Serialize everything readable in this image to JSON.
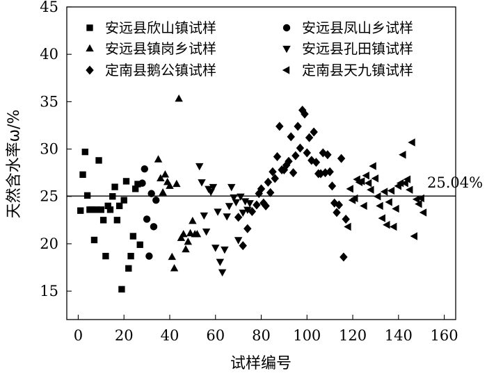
{
  "chart_data": {
    "type": "scatter",
    "xlabel": "试样编号",
    "ylabel": "天然含水率ω/%",
    "xlim": [
      -5,
      165
    ],
    "ylim": [
      12,
      45
    ],
    "xticks": [
      0,
      20,
      40,
      60,
      80,
      100,
      120,
      140,
      160
    ],
    "yticks": [
      15,
      20,
      25,
      30,
      35,
      40,
      45
    ],
    "legend_position": "top",
    "reference_line": {
      "y": 25.04,
      "label": "25.04%"
    },
    "series": [
      {
        "name": "安远县欣山镇试样",
        "marker": "square",
        "x": [
          1,
          2,
          3,
          4,
          5,
          6,
          7,
          8,
          9,
          10,
          11,
          12,
          13,
          14,
          15,
          16,
          17,
          18,
          19,
          20,
          21,
          22,
          23,
          24,
          25,
          26,
          27
        ],
        "y": [
          23.5,
          27.3,
          29.7,
          25.1,
          23.6,
          23.6,
          20.4,
          23.6,
          28.8,
          23.6,
          22.5,
          18.7,
          24.0,
          23.6,
          25.0,
          26.0,
          22.5,
          24.0,
          15.2,
          24.6,
          26.6,
          17.4,
          18.7,
          20.8,
          25.8,
          26.3,
          19.9
        ]
      },
      {
        "name": "安远县凤山乡试样",
        "marker": "circle",
        "x": [
          28,
          29,
          30,
          31,
          32,
          33,
          34
        ],
        "y": [
          26.4,
          27.9,
          22.6,
          18.7,
          25.3,
          21.8,
          24.6
        ]
      },
      {
        "name": "安远县镇岗乡试样",
        "marker": "triangle-up",
        "x": [
          35,
          36,
          37,
          38,
          39,
          40,
          41,
          42,
          43,
          44,
          45,
          46,
          47,
          48,
          49,
          50,
          51,
          52
        ],
        "y": [
          28.9,
          26.9,
          25.4,
          27.3,
          26.5,
          26.1,
          18.6,
          17.4,
          26.3,
          35.3,
          20.6,
          21.0,
          19.4,
          20.2,
          21.1,
          22.4,
          21.0,
          21.0
        ]
      },
      {
        "name": "安远县孔田镇试样",
        "marker": "triangle-down",
        "x": [
          53,
          54,
          55,
          56,
          57,
          58,
          59,
          60,
          61,
          62,
          63,
          64,
          65,
          66,
          67,
          68,
          69,
          70,
          71,
          72,
          73,
          74,
          75
        ],
        "y": [
          28.2,
          26.5,
          23.0,
          21.3,
          25.8,
          25.5,
          26.0,
          19.6,
          23.4,
          18.1,
          17.0,
          19.4,
          22.9,
          24.0,
          26.0,
          24.9,
          24.4,
          20.4,
          25.0,
          23.3,
          24.5,
          23.6,
          24.3
        ]
      },
      {
        "name": "定南县鹅公镇试样",
        "marker": "diamond",
        "x": [
          70,
          72,
          74,
          76,
          78,
          79,
          80,
          81,
          82,
          83,
          84,
          85,
          86,
          87,
          88,
          89,
          90,
          91,
          92,
          93,
          94,
          95,
          96,
          97,
          98,
          99,
          100,
          101,
          102,
          103,
          104,
          105,
          106,
          107,
          108,
          109,
          110,
          111,
          112,
          113,
          114,
          115,
          116,
          117
        ],
        "y": [
          22.8,
          19.8,
          21.6,
          23.4,
          24.1,
          25.3,
          25.8,
          24.3,
          24.0,
          26.5,
          25.4,
          27.6,
          26.9,
          29.2,
          32.4,
          27.8,
          27.8,
          28.3,
          28.7,
          31.3,
          27.5,
          29.3,
          32.4,
          30.1,
          34.1,
          33.7,
          29.6,
          31.2,
          28.8,
          31.8,
          28.6,
          27.4,
          27.4,
          29.6,
          27.5,
          29.4,
          27.6,
          26.1,
          24.3,
          23.3,
          24.1,
          29.0,
          18.6,
          22.6
        ]
      },
      {
        "name": "定南县天九镇试样",
        "marker": "triangle-left",
        "x": [
          118,
          119,
          120,
          121,
          122,
          123,
          124,
          125,
          126,
          127,
          128,
          129,
          130,
          131,
          132,
          133,
          134,
          135,
          136,
          137,
          138,
          139,
          140,
          141,
          142,
          143,
          144,
          145,
          146,
          147,
          148,
          149,
          150,
          151
        ],
        "y": [
          21.8,
          25.8,
          24.6,
          24.8,
          26.8,
          26.5,
          26.6,
          24.0,
          27.2,
          26.4,
          25.7,
          28.2,
          26.9,
          25.0,
          24.0,
          22.7,
          25.5,
          22.0,
          24.4,
          25.6,
          21.8,
          23.7,
          26.1,
          26.4,
          29.4,
          26.4,
          26.8,
          25.7,
          30.7,
          20.8,
          24.7,
          24.2,
          24.8,
          23.3
        ]
      }
    ]
  }
}
